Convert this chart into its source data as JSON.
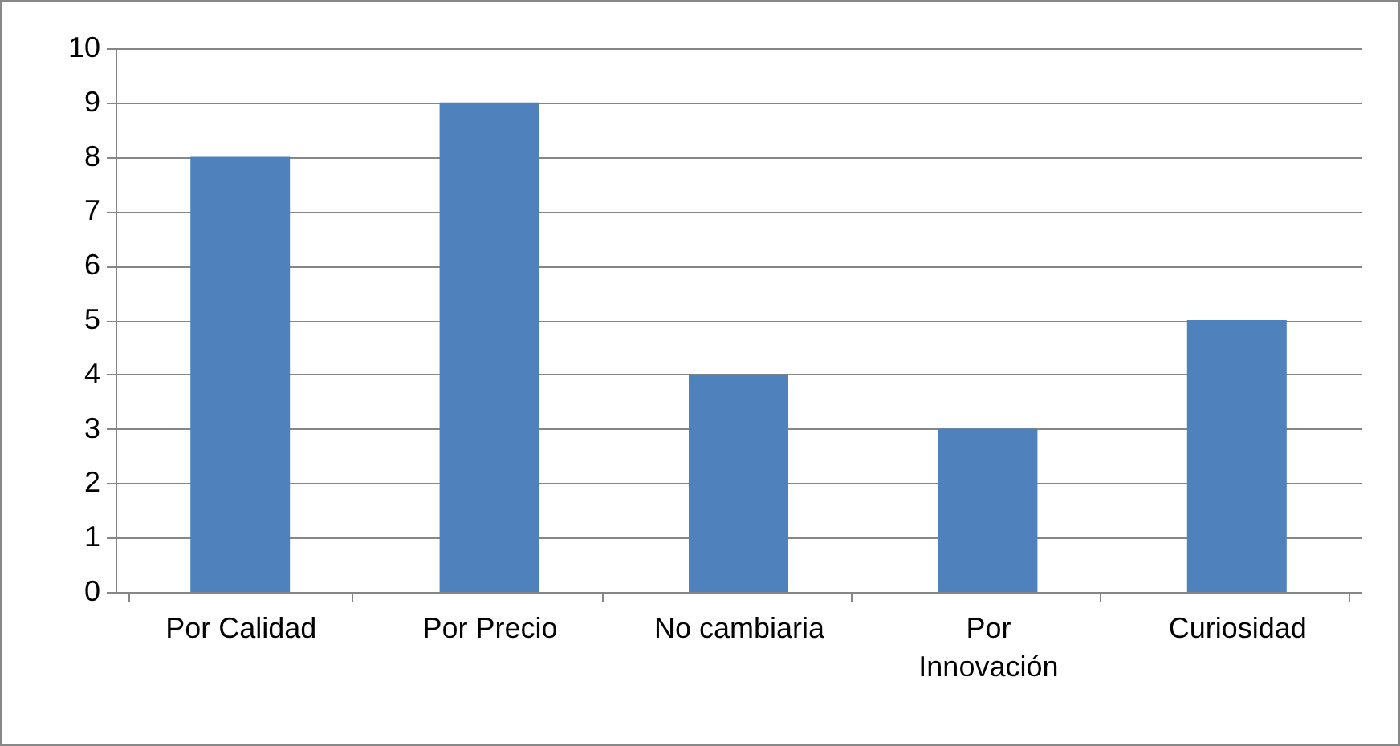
{
  "chart_data": {
    "type": "bar",
    "categories": [
      "Por Calidad",
      "Por Precio",
      "No cambiaria",
      "Por Innovación",
      "Curiosidad"
    ],
    "values": [
      8,
      9,
      4,
      3,
      5
    ],
    "color": "#4f81bd",
    "ylim": [
      0,
      10
    ],
    "yticks": [
      0,
      1,
      2,
      3,
      4,
      5,
      6,
      7,
      8,
      9,
      10
    ],
    "grid": "y"
  }
}
